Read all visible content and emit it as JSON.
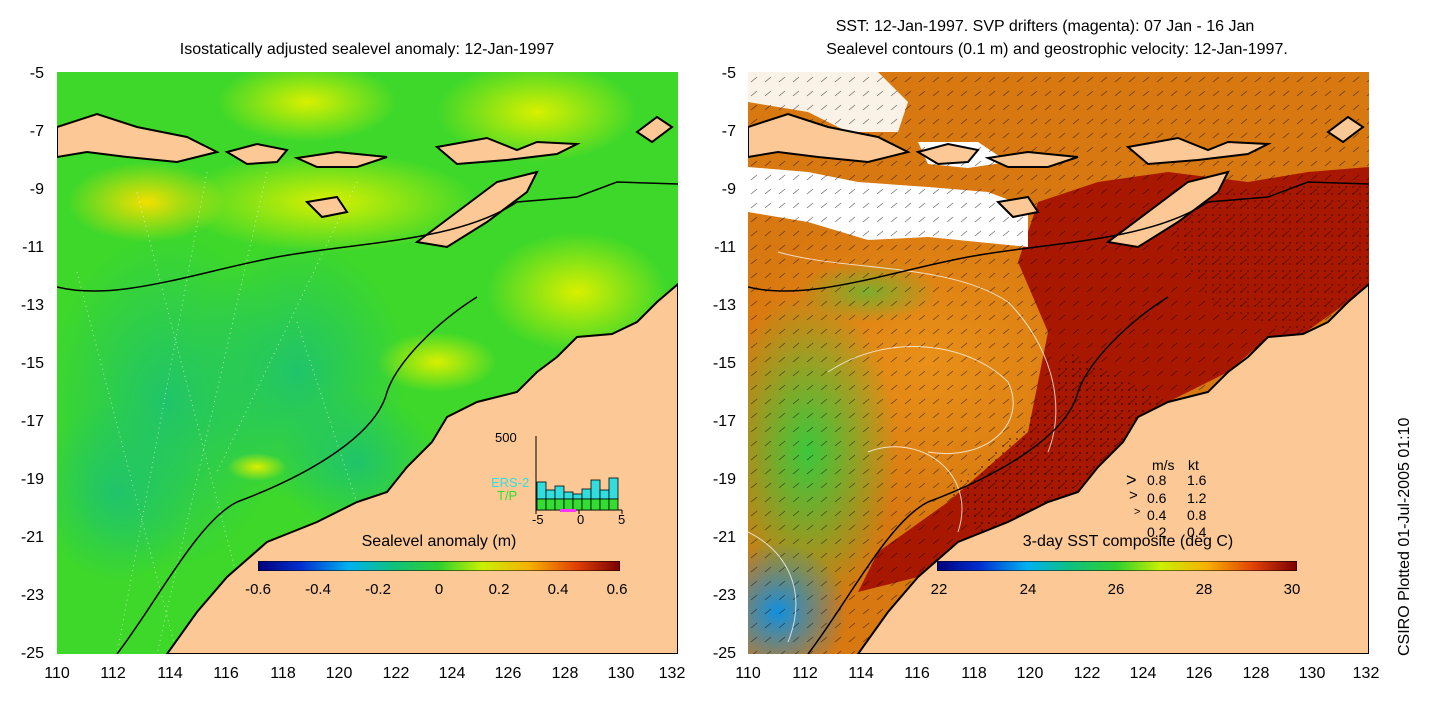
{
  "left_panel": {
    "title": "Isostatically adjusted sealevel anomaly: 12-Jan-1997",
    "colorbar_label": "Sealevel anomaly (m)",
    "colorbar_ticks": [
      "-0.6",
      "-0.4",
      "-0.2",
      "0",
      "0.2",
      "0.4",
      "0.6"
    ],
    "histogram": {
      "ymax_label": "500",
      "legend_ers2": "ERS-2",
      "legend_tp": "T/P",
      "xticks": [
        "-5",
        "0",
        "5"
      ],
      "colors": {
        "ers2": "#33dddd",
        "tp": "#33dd33",
        "marker": "#ff33ff"
      }
    }
  },
  "right_panel": {
    "title_line1": "SST: 12-Jan-1997. SVP drifters (magenta): 07 Jan - 16 Jan",
    "title_line2": "Sealevel contours (0.1 m) and geostrophic velocity: 12-Jan-1997.",
    "colorbar_label": "3-day SST composite (deg C)",
    "colorbar_ticks": [
      "22",
      "24",
      "26",
      "28",
      "30"
    ],
    "velocity_legend": {
      "header_ms": "m/s",
      "header_kt": "kt",
      "rows": [
        {
          "ms": "0.8",
          "kt": "1.6"
        },
        {
          "ms": "0.6",
          "kt": "1.2"
        },
        {
          "ms": "0.4",
          "kt": "0.8"
        },
        {
          "ms": "0.2",
          "kt": "0.4"
        }
      ]
    }
  },
  "axes": {
    "yticks": [
      "-5",
      "-7",
      "-9",
      "-11",
      "-13",
      "-15",
      "-17",
      "-19",
      "-21",
      "-23",
      "-25"
    ],
    "xticks": [
      "110",
      "112",
      "114",
      "116",
      "118",
      "120",
      "122",
      "124",
      "126",
      "128",
      "130",
      "132"
    ]
  },
  "credit": "CSIRO Plotted 01-Jul-2005 01:10",
  "colors": {
    "land": "#fbc896",
    "ocean_green": "#44dd22",
    "sst_hot": "#aa1a00",
    "sst_orange": "#e07a10",
    "cloud": "#ffffff"
  }
}
